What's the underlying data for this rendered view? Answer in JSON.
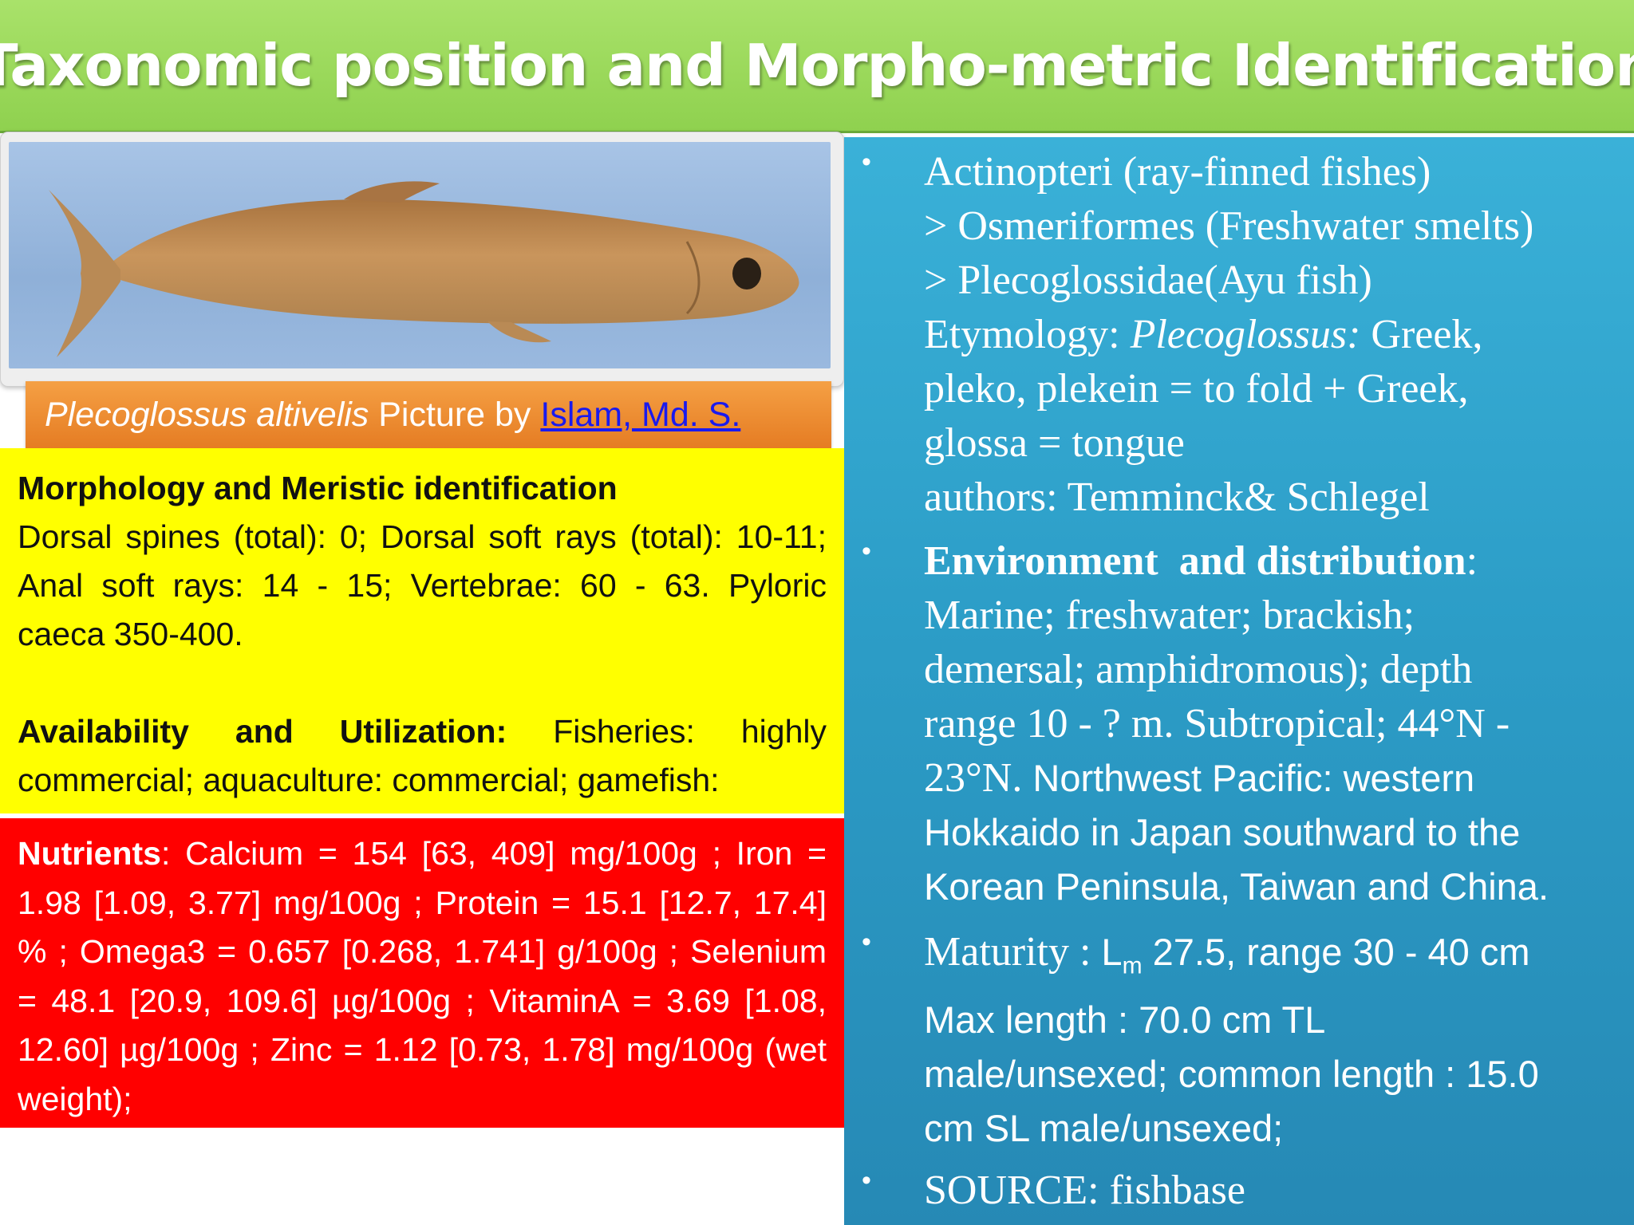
{
  "slide": {
    "title": "Taxonomic position and Morpho-metric Identification"
  },
  "photo": {
    "icon": "fish-photo",
    "caption": {
      "species": "Plecoglossus altivelis",
      "by_text": " Picture by ",
      "author": "Islam, Md. S."
    }
  },
  "morphology": {
    "heading": "Morphology and Meristic  identification",
    "text": "Dorsal spines (total): 0; Dorsal soft rays (total): 10-11; Anal soft rays: 14 - 15; Vertebrae: 60 - 63. Pyloric caeca 350-400.",
    "availability_heading": "Availability and Utilization:",
    "availability_text": " Fisheries: highly commercial; aquaculture: commercial; gamefish:"
  },
  "nutrients": {
    "heading": "Nutrients",
    "text": ":  Calcium = 154 [63, 409] mg/100g ; Iron = 1.98 [1.09, 3.77] mg/100g ; Protein = 15.1 [12.7, 17.4] % ; Omega3 = 0.657 [0.268, 1.741] g/100g ; Selenium = 48.1 [20.9, 109.6] µg/100g ; VitaminA = 3.69 [1.08, 12.60] µg/100g ; Zinc = 1.12 [0.73, 1.78] mg/100g (wet weight);"
  },
  "taxonomy": {
    "bullet": "•",
    "line1": "Actinopteri (ray-finned fishes)",
    "line2": "> Osmeriformes (Freshwater smelts)",
    "line3": "> Plecoglossidae(Ayu fish)",
    "etym_label": "Etymology: ",
    "etym_genus": "Plecoglossus:",
    "etym_rest1": " Greek,",
    "line5": "pleko, plekein = to fold + Greek,",
    "line6": "glossa = tongue",
    "line7": "authors: Temminck& Schlegel"
  },
  "environment": {
    "heading": "Environment  and distribution",
    "colon": ":",
    "line1": "Marine; freshwater; brackish;",
    "line2": "demersal; amphidromous); depth",
    "line3": "range 10 - ? m. Subtropical; 44°N -",
    "line4a": "23°N.",
    "line4b": " Northwest Pacific: western",
    "line5": "Hokkaido in Japan southward to the",
    "line6": "Korean Peninsula, Taiwan and China."
  },
  "maturity": {
    "label": "Maturity : ",
    "lm": "L",
    "lm_sub": "m",
    "lm_text": " 27.5, range 30 - 40 cm",
    "line2": "Max length : 70.0 cm TL",
    "line3": "male/unsexed; common length : 15.0",
    "line4": "cm SL male/unsexed;"
  },
  "source": {
    "text": "SOURCE: fishbase"
  }
}
